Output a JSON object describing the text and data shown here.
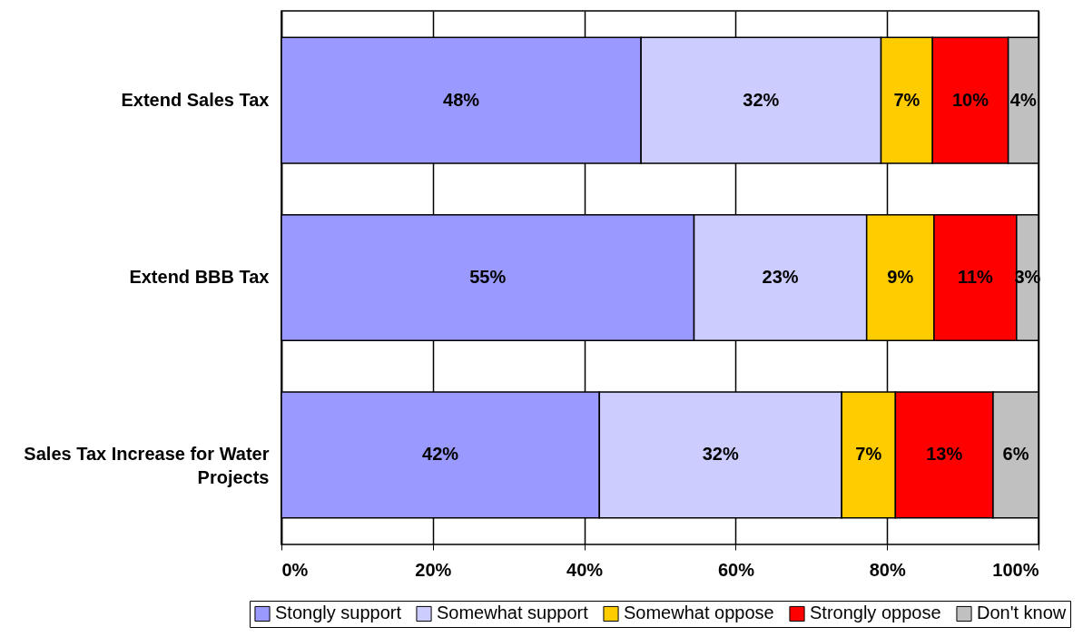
{
  "chart_data": {
    "type": "bar",
    "orientation": "horizontal",
    "stacked": true,
    "categories": [
      "Extend Sales Tax",
      "Extend BBB Tax",
      "Sales Tax Increase for Water Projects"
    ],
    "series": [
      {
        "name": "Stongly support",
        "color": "#9999ff",
        "values": [
          47.5,
          54.5,
          42.0
        ],
        "value_labels": [
          "48%",
          "55%",
          "42%"
        ]
      },
      {
        "name": "Somewhat support",
        "color": "#ccccff",
        "values": [
          31.7,
          22.8,
          32.0
        ],
        "value_labels": [
          "32%",
          "23%",
          "32%"
        ]
      },
      {
        "name": "Somewhat oppose",
        "color": "#ffcc00",
        "values": [
          6.8,
          8.9,
          7.1
        ],
        "value_labels": [
          "7%",
          "9%",
          "7%"
        ]
      },
      {
        "name": "Strongly oppose",
        "color": "#ff0000",
        "values": [
          10.0,
          10.9,
          12.9
        ],
        "value_labels": [
          "10%",
          "11%",
          "13%"
        ]
      },
      {
        "name": "Don't know",
        "color": "#c0c0c0",
        "values": [
          4.0,
          2.9,
          6.0
        ],
        "value_labels": [
          "4%",
          "3%",
          "6%"
        ]
      }
    ],
    "xlim": [
      0,
      100
    ],
    "xticks": [
      {
        "value": 0,
        "label": "0%"
      },
      {
        "value": 20,
        "label": "20%"
      },
      {
        "value": 40,
        "label": "40%"
      },
      {
        "value": 60,
        "label": "60%"
      },
      {
        "value": 80,
        "label": "80%"
      },
      {
        "value": 100,
        "label": "100%"
      }
    ],
    "grid": "x",
    "legend": "bottom"
  }
}
